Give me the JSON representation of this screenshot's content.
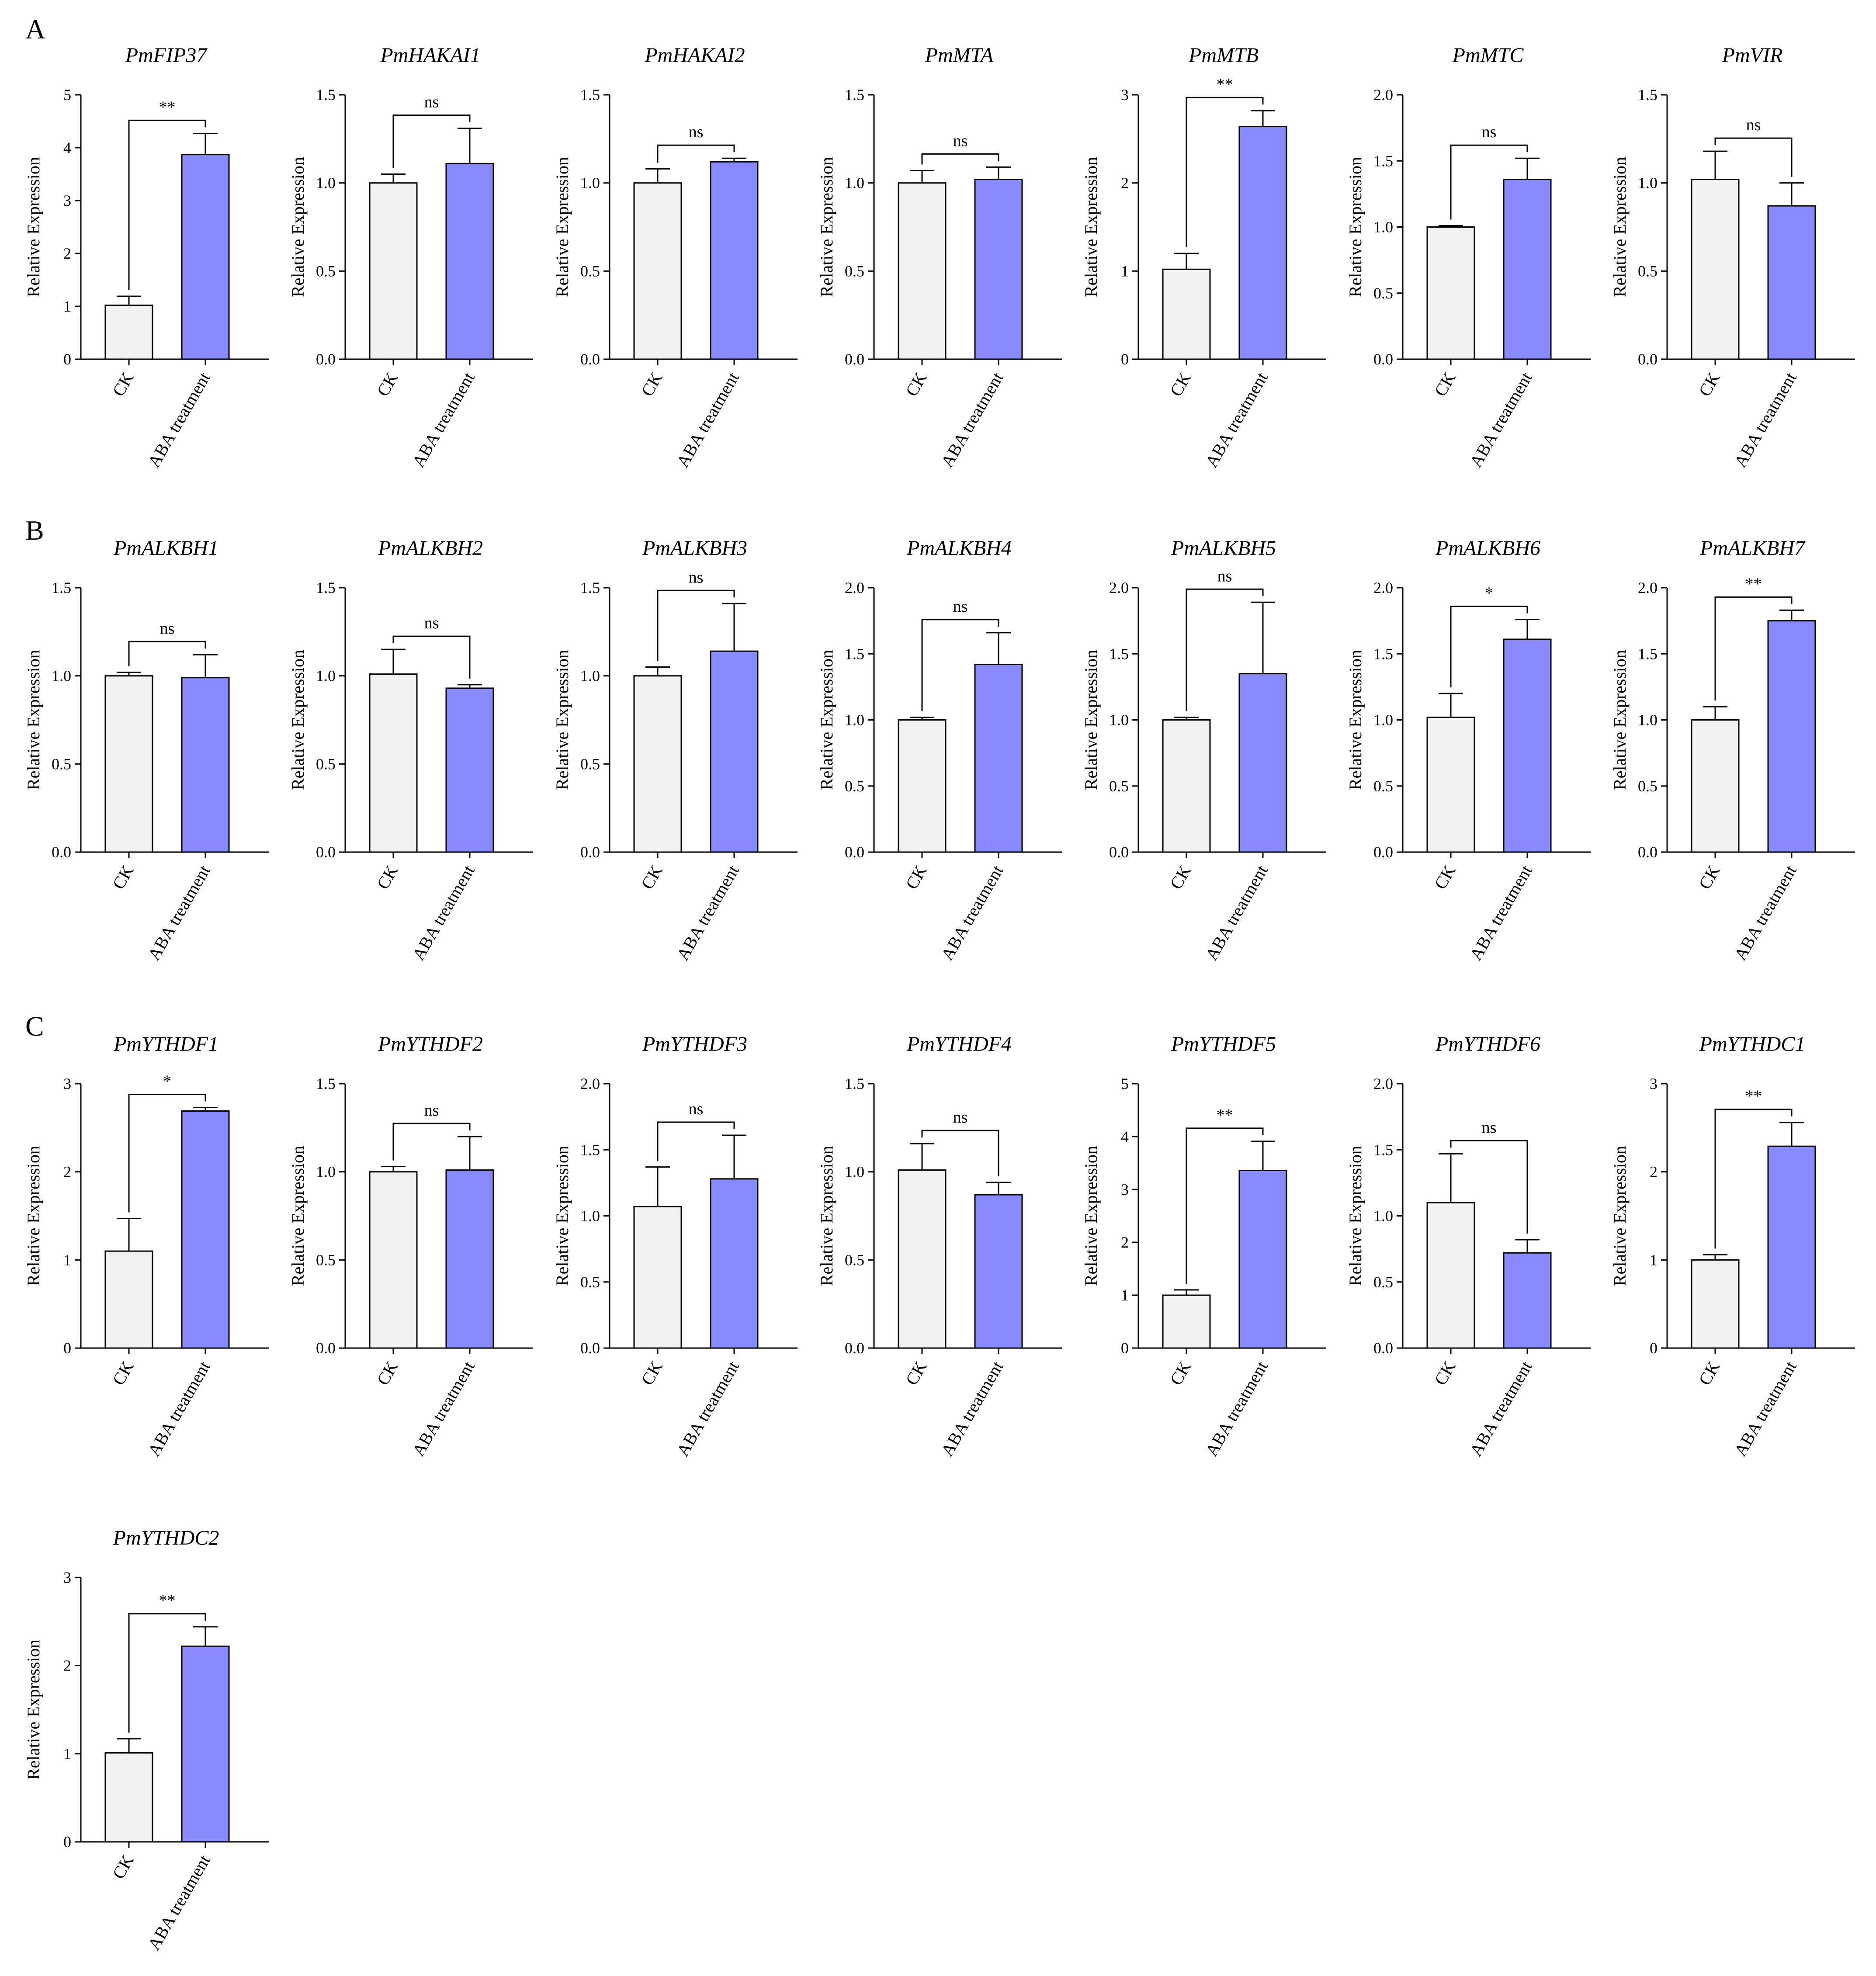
{
  "panel_labels": [
    "A",
    "B",
    "C"
  ],
  "colors": {
    "ck": "#f2f2f2",
    "aba": "#8a8aff",
    "stroke": "#000000"
  },
  "chart_data": [
    {
      "type": "bar",
      "title": "PmFIP37",
      "ylabel": "Relative Expression",
      "categories": [
        "CK",
        "ABA treatment"
      ],
      "values": [
        1.02,
        3.87
      ],
      "errors": [
        0.17,
        0.4
      ],
      "ylim": [
        0,
        5
      ],
      "yticks": [
        "0",
        "1",
        "2",
        "3",
        "4",
        "5"
      ],
      "significance": "**",
      "grid": false
    },
    {
      "type": "bar",
      "title": "PmHAKAI1",
      "ylabel": "Relative Expression",
      "categories": [
        "CK",
        "ABA treatment"
      ],
      "values": [
        1.0,
        1.11
      ],
      "errors": [
        0.05,
        0.2
      ],
      "ylim": [
        0,
        1.5
      ],
      "yticks": [
        "0.0",
        "0.5",
        "1.0",
        "1.5"
      ],
      "significance": "ns",
      "grid": false
    },
    {
      "type": "bar",
      "title": "PmHAKAI2",
      "ylabel": "Relative Expression",
      "categories": [
        "CK",
        "ABA treatment"
      ],
      "values": [
        1.0,
        1.12
      ],
      "errors": [
        0.08,
        0.02
      ],
      "ylim": [
        0,
        1.5
      ],
      "yticks": [
        "0.0",
        "0.5",
        "1.0",
        "1.5"
      ],
      "significance": "ns",
      "grid": false
    },
    {
      "type": "bar",
      "title": "PmMTA",
      "ylabel": "Relative Expression",
      "categories": [
        "CK",
        "ABA treatment"
      ],
      "values": [
        1.0,
        1.02
      ],
      "errors": [
        0.07,
        0.07
      ],
      "ylim": [
        0,
        1.5
      ],
      "yticks": [
        "0.0",
        "0.5",
        "1.0",
        "1.5"
      ],
      "significance": "ns",
      "grid": false
    },
    {
      "type": "bar",
      "title": "PmMTB",
      "ylabel": "Relative Expression",
      "categories": [
        "CK",
        "ABA treatment"
      ],
      "values": [
        1.02,
        2.64
      ],
      "errors": [
        0.18,
        0.18
      ],
      "ylim": [
        0,
        3
      ],
      "yticks": [
        "0",
        "1",
        "2",
        "3"
      ],
      "significance": "**",
      "grid": false
    },
    {
      "type": "bar",
      "title": "PmMTC",
      "ylabel": "Relative Expression",
      "categories": [
        "CK",
        "ABA treatment"
      ],
      "values": [
        1.0,
        1.36
      ],
      "errors": [
        0.01,
        0.16
      ],
      "ylim": [
        0,
        2
      ],
      "yticks": [
        "0.0",
        "0.5",
        "1.0",
        "1.5",
        "2.0"
      ],
      "significance": "ns",
      "grid": false
    },
    {
      "type": "bar",
      "title": "PmVIR",
      "ylabel": "Relative Expression",
      "categories": [
        "CK",
        "ABA treatment"
      ],
      "values": [
        1.02,
        0.87
      ],
      "errors": [
        0.16,
        0.13
      ],
      "ylim": [
        0,
        1.5
      ],
      "yticks": [
        "0.0",
        "0.5",
        "1.0",
        "1.5"
      ],
      "significance": "ns",
      "grid": false
    },
    {
      "type": "bar",
      "title": "PmALKBH1",
      "ylabel": "Relative Expression",
      "categories": [
        "CK",
        "ABA treatment"
      ],
      "values": [
        1.0,
        0.99
      ],
      "errors": [
        0.02,
        0.13
      ],
      "ylim": [
        0,
        1.5
      ],
      "yticks": [
        "0.0",
        "0.5",
        "1.0",
        "1.5"
      ],
      "significance": "ns",
      "grid": false
    },
    {
      "type": "bar",
      "title": "PmALKBH2",
      "ylabel": "Relative Expression",
      "categories": [
        "CK",
        "ABA treatment"
      ],
      "values": [
        1.01,
        0.93
      ],
      "errors": [
        0.14,
        0.02
      ],
      "ylim": [
        0,
        1.5
      ],
      "yticks": [
        "0.0",
        "0.5",
        "1.0",
        "1.5"
      ],
      "significance": "ns",
      "grid": false
    },
    {
      "type": "bar",
      "title": "PmALKBH3",
      "ylabel": "Relative Expression",
      "categories": [
        "CK",
        "ABA treatment"
      ],
      "values": [
        1.0,
        1.14
      ],
      "errors": [
        0.05,
        0.27
      ],
      "ylim": [
        0,
        1.5
      ],
      "yticks": [
        "0.0",
        "0.5",
        "1.0",
        "1.5"
      ],
      "significance": "ns",
      "grid": false
    },
    {
      "type": "bar",
      "title": "PmALKBH4",
      "ylabel": "Relative Expression",
      "categories": [
        "CK",
        "ABA treatment"
      ],
      "values": [
        1.0,
        1.42
      ],
      "errors": [
        0.02,
        0.24
      ],
      "ylim": [
        0,
        2
      ],
      "yticks": [
        "0.0",
        "0.5",
        "1.0",
        "1.5",
        "2.0"
      ],
      "significance": "ns",
      "grid": false
    },
    {
      "type": "bar",
      "title": "PmALKBH5",
      "ylabel": "Relative Expression",
      "categories": [
        "CK",
        "ABA treatment"
      ],
      "values": [
        1.0,
        1.35
      ],
      "errors": [
        0.02,
        0.54
      ],
      "ylim": [
        0,
        2
      ],
      "yticks": [
        "0.0",
        "0.5",
        "1.0",
        "1.5",
        "2.0"
      ],
      "significance": "ns",
      "grid": false
    },
    {
      "type": "bar",
      "title": "PmALKBH6",
      "ylabel": "Relative Expression",
      "categories": [
        "CK",
        "ABA treatment"
      ],
      "values": [
        1.02,
        1.61
      ],
      "errors": [
        0.18,
        0.15
      ],
      "ylim": [
        0,
        2
      ],
      "yticks": [
        "0.0",
        "0.5",
        "1.0",
        "1.5",
        "2.0"
      ],
      "significance": "*",
      "grid": false
    },
    {
      "type": "bar",
      "title": "PmALKBH7",
      "ylabel": "Relative Expression",
      "categories": [
        "CK",
        "ABA treatment"
      ],
      "values": [
        1.0,
        1.75
      ],
      "errors": [
        0.1,
        0.08
      ],
      "ylim": [
        0,
        2
      ],
      "yticks": [
        "0.0",
        "0.5",
        "1.0",
        "1.5",
        "2.0"
      ],
      "significance": "**",
      "grid": false
    },
    {
      "type": "bar",
      "title": "PmYTHDF1",
      "ylabel": "Relative Expression",
      "categories": [
        "CK",
        "ABA treatment"
      ],
      "values": [
        1.1,
        2.69
      ],
      "errors": [
        0.37,
        0.04
      ],
      "ylim": [
        0,
        3
      ],
      "yticks": [
        "0",
        "1",
        "2",
        "3"
      ],
      "significance": "*",
      "grid": false
    },
    {
      "type": "bar",
      "title": "PmYTHDF2",
      "ylabel": "Relative Expression",
      "categories": [
        "CK",
        "ABA treatment"
      ],
      "values": [
        1.0,
        1.01
      ],
      "errors": [
        0.03,
        0.19
      ],
      "ylim": [
        0,
        1.5
      ],
      "yticks": [
        "0.0",
        "0.5",
        "1.0",
        "1.5"
      ],
      "significance": "ns",
      "grid": false
    },
    {
      "type": "bar",
      "title": "PmYTHDF3",
      "ylabel": "Relative Expression",
      "categories": [
        "CK",
        "ABA treatment"
      ],
      "values": [
        1.07,
        1.28
      ],
      "errors": [
        0.3,
        0.33
      ],
      "ylim": [
        0,
        2
      ],
      "yticks": [
        "0.0",
        "0.5",
        "1.0",
        "1.5",
        "2.0"
      ],
      "significance": "ns",
      "grid": false
    },
    {
      "type": "bar",
      "title": "PmYTHDF4",
      "ylabel": "Relative Expression",
      "categories": [
        "CK",
        "ABA treatment"
      ],
      "values": [
        1.01,
        0.87
      ],
      "errors": [
        0.15,
        0.07
      ],
      "ylim": [
        0,
        1.5
      ],
      "yticks": [
        "0.0",
        "0.5",
        "1.0",
        "1.5"
      ],
      "significance": "ns",
      "grid": false
    },
    {
      "type": "bar",
      "title": "PmYTHDF5",
      "ylabel": "Relative Expression",
      "categories": [
        "CK",
        "ABA treatment"
      ],
      "values": [
        1.0,
        3.36
      ],
      "errors": [
        0.1,
        0.55
      ],
      "ylim": [
        0,
        5
      ],
      "yticks": [
        "0",
        "1",
        "2",
        "3",
        "4",
        "5"
      ],
      "significance": "**",
      "grid": false
    },
    {
      "type": "bar",
      "title": "PmYTHDF6",
      "ylabel": "Relative Expression",
      "categories": [
        "CK",
        "ABA treatment"
      ],
      "values": [
        1.1,
        0.72
      ],
      "errors": [
        0.37,
        0.1
      ],
      "ylim": [
        0,
        2
      ],
      "yticks": [
        "0.0",
        "0.5",
        "1.0",
        "1.5",
        "2.0"
      ],
      "significance": "ns",
      "grid": false
    },
    {
      "type": "bar",
      "title": "PmYTHDC1",
      "ylabel": "Relative Expression",
      "categories": [
        "CK",
        "ABA treatment"
      ],
      "values": [
        1.0,
        2.29
      ],
      "errors": [
        0.06,
        0.27
      ],
      "ylim": [
        0,
        3
      ],
      "yticks": [
        "0",
        "1",
        "2",
        "3"
      ],
      "significance": "**",
      "grid": false
    },
    {
      "type": "bar",
      "title": "PmYTHDC2",
      "ylabel": "Relative Expression",
      "categories": [
        "CK",
        "ABA treatment"
      ],
      "values": [
        1.01,
        2.22
      ],
      "errors": [
        0.16,
        0.22
      ],
      "ylim": [
        0,
        3
      ],
      "yticks": [
        "0",
        "1",
        "2",
        "3"
      ],
      "significance": "**",
      "grid": false
    }
  ]
}
